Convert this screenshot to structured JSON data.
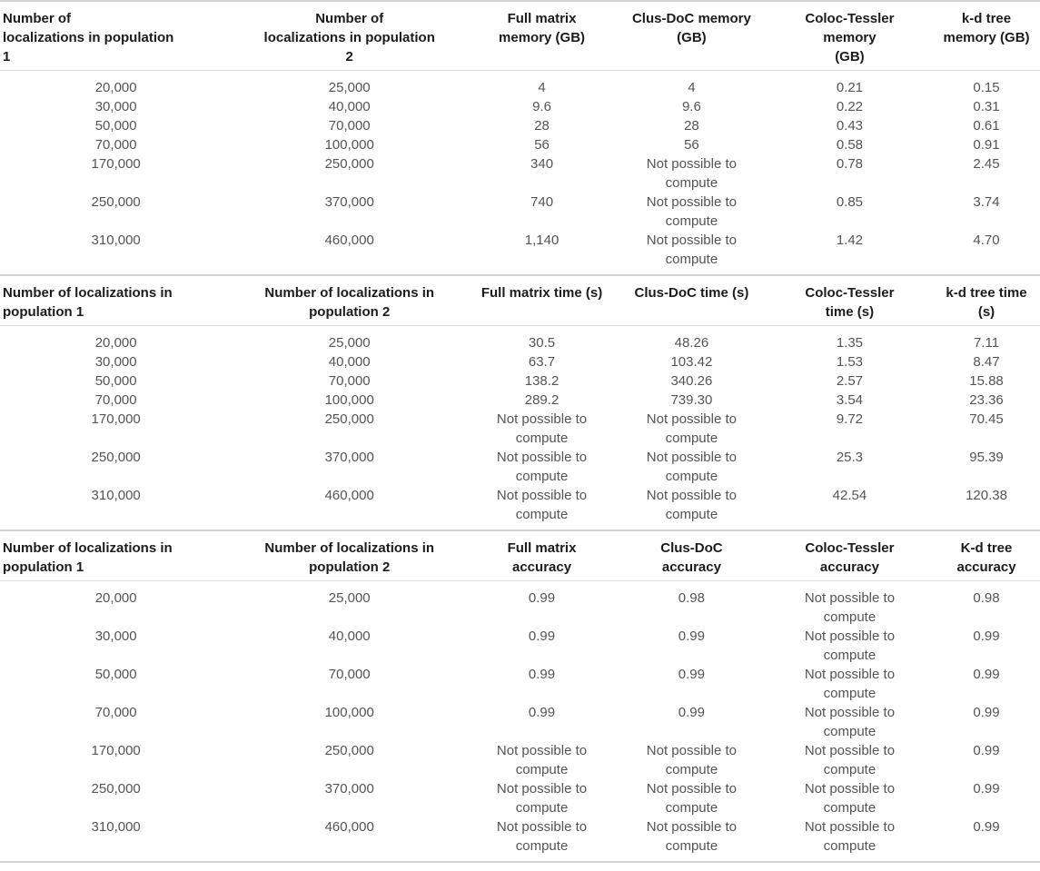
{
  "colors": {
    "table_rule": "#d2d2d2",
    "header_rule": "#dcdcdc",
    "header_text": "#1c1c1c",
    "body_text": "#545454",
    "background": "#ffffff"
  },
  "not_possible_label": "Not possible to\ncompute",
  "tables": [
    {
      "name": "memory-comparison",
      "headers": [
        "Number of\nlocalizations in population\n1",
        "Number of\nlocalizations in population\n2",
        "Full matrix\nmemory (GB)",
        "Clus-DoC memory\n(GB)",
        "Coloc-Tessler\nmemory\n(GB)",
        "k-d tree\nmemory (GB)"
      ],
      "rows": [
        [
          "20,000",
          "25,000",
          "4",
          "4",
          "0.21",
          "0.15"
        ],
        [
          "30,000",
          "40,000",
          "9.6",
          "9.6",
          "0.22",
          "0.31"
        ],
        [
          "50,000",
          "70,000",
          "28",
          "28",
          "0.43",
          "0.61"
        ],
        [
          "70,000",
          "100,000",
          "56",
          "56",
          "0.58",
          "0.91"
        ],
        [
          "170,000",
          "250,000",
          "340",
          "Not possible to\ncompute",
          "0.78",
          "2.45"
        ],
        [
          "250,000",
          "370,000",
          "740",
          "Not possible to\ncompute",
          "0.85",
          "3.74"
        ],
        [
          "310,000",
          "460,000",
          "1,140",
          "Not possible to\ncompute",
          "1.42",
          "4.70"
        ]
      ]
    },
    {
      "name": "time-comparison",
      "headers": [
        "Number of localizations in\npopulation 1",
        "Number of localizations in\npopulation 2",
        "Full matrix time (s)",
        "Clus-DoC time (s)",
        "Coloc-Tessler\ntime (s)",
        "k-d tree time (s)"
      ],
      "rows": [
        [
          "20,000",
          "25,000",
          "30.5",
          "48.26",
          "1.35",
          "7.11"
        ],
        [
          "30,000",
          "40,000",
          "63.7",
          "103.42",
          "1.53",
          "8.47"
        ],
        [
          "50,000",
          "70,000",
          "138.2",
          "340.26",
          "2.57",
          "15.88"
        ],
        [
          "70,000",
          "100,000",
          "289.2",
          "739.30",
          "3.54",
          "23.36"
        ],
        [
          "170,000",
          "250,000",
          "Not possible to\ncompute",
          "Not possible to\ncompute",
          "9.72",
          "70.45"
        ],
        [
          "250,000",
          "370,000",
          "Not possible to\ncompute",
          "Not possible to\ncompute",
          "25.3",
          "95.39"
        ],
        [
          "310,000",
          "460,000",
          "Not possible to\ncompute",
          "Not possible to\ncompute",
          "42.54",
          "120.38"
        ]
      ]
    },
    {
      "name": "accuracy-comparison",
      "headers": [
        "Number of localizations in\npopulation 1",
        "Number of localizations in\npopulation 2",
        "Full matrix\naccuracy",
        "Clus-DoC\naccuracy",
        "Coloc-Tessler\naccuracy",
        "K-d tree\naccuracy"
      ],
      "rows": [
        [
          "20,000",
          "25,000",
          "0.99",
          "0.98",
          "Not possible to\ncompute",
          "0.98"
        ],
        [
          "30,000",
          "40,000",
          "0.99",
          "0.99",
          "Not possible to\ncompute",
          "0.99"
        ],
        [
          "50,000",
          "70,000",
          "0.99",
          "0.99",
          "Not possible to\ncompute",
          "0.99"
        ],
        [
          "70,000",
          "100,000",
          "0.99",
          "0.99",
          "Not possible to\ncompute",
          "0.99"
        ],
        [
          "170,000",
          "250,000",
          "Not possible to\ncompute",
          "Not possible to\ncompute",
          "Not possible to\ncompute",
          "0.99"
        ],
        [
          "250,000",
          "370,000",
          "Not possible to\ncompute",
          "Not possible to\ncompute",
          "Not possible to\ncompute",
          "0.99"
        ],
        [
          "310,000",
          "460,000",
          "Not possible to\ncompute",
          "Not possible to\ncompute",
          "Not possible to\ncompute",
          "0.99"
        ]
      ]
    }
  ]
}
